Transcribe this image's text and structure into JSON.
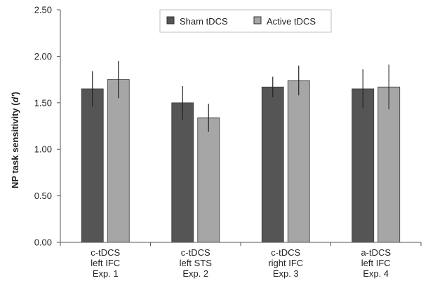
{
  "chart_data": {
    "type": "bar",
    "categories": [
      [
        "c-tDCS",
        "left IFC",
        "Exp. 1"
      ],
      [
        "c-tDCS",
        "left STS",
        "Exp. 2"
      ],
      [
        "c-tDCS",
        "right IFC",
        "Exp. 3"
      ],
      [
        "a-tDCS",
        "left IFC",
        "Exp. 4"
      ]
    ],
    "series": [
      {
        "name": "Sham tDCS",
        "color": "#555555",
        "values": [
          1.65,
          1.5,
          1.67,
          1.65
        ],
        "errors": [
          0.19,
          0.18,
          0.11,
          0.21
        ]
      },
      {
        "name": "Active tDCS",
        "color": "#a6a6a6",
        "values": [
          1.75,
          1.34,
          1.74,
          1.67
        ],
        "errors": [
          0.2,
          0.15,
          0.16,
          0.24
        ]
      }
    ],
    "xlabel": "",
    "ylabel_main": "NP task sensitivity (",
    "ylabel_var": "d'",
    "ylabel_end": ")",
    "ylim": [
      0,
      2.5
    ],
    "yticks": [
      "0.00",
      "0.50",
      "1.00",
      "1.50",
      "2.00",
      "2.50"
    ],
    "grid": false,
    "legend_position": "top-center"
  }
}
